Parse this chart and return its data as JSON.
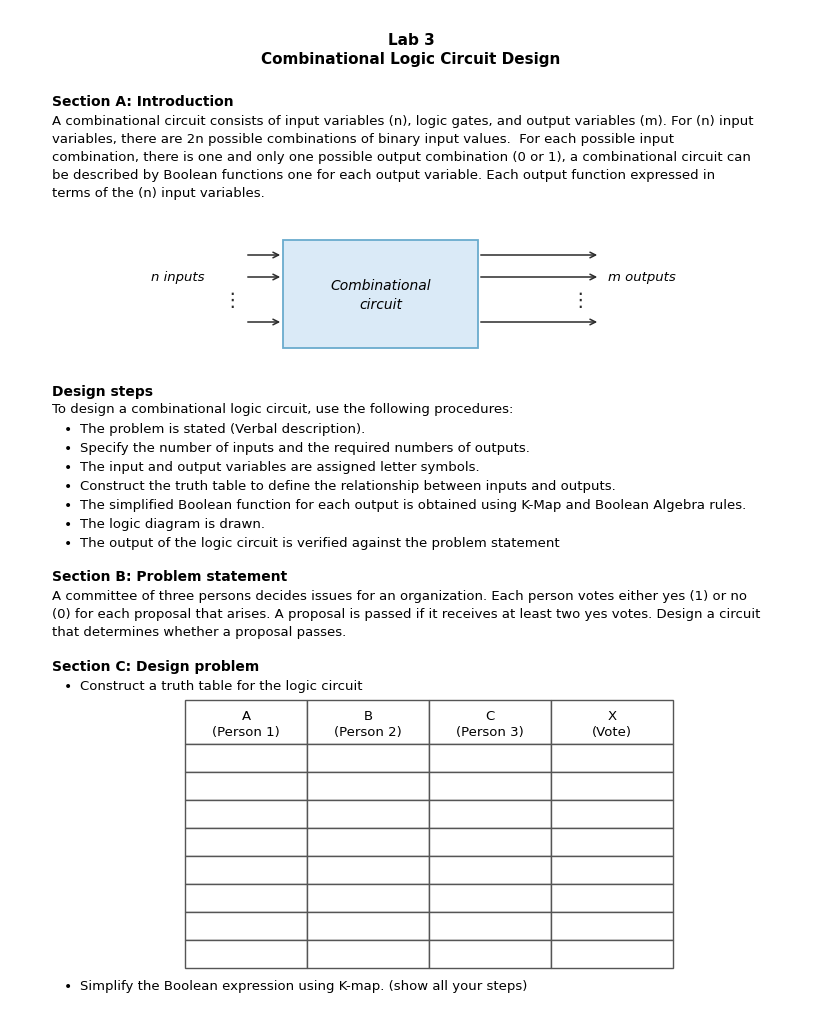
{
  "title_line1": "Lab 3",
  "title_line2": "Combinational Logic Circuit Design",
  "section_a_title": "Section A: Introduction",
  "section_a_body": "A combinational circuit consists of input variables (n), logic gates, and output variables (m). For (n) input\nvariables, there are 2n possible combinations of binary input values.  For each possible input\ncombination, there is one and only one possible output combination (0 or 1), a combinational circuit can\nbe described by Boolean functions one for each output variable. Each output function expressed in\nterms of the (n) input variables.",
  "circuit_box_label_line1": "Combinational",
  "circuit_box_label_line2": "circuit",
  "n_inputs_label": "n inputs",
  "m_outputs_label": "m outputs",
  "design_steps_title": "Design steps",
  "design_steps_intro": "To design a combinational logic circuit, use the following procedures:",
  "design_steps_bullets": [
    "The problem is stated (Verbal description).",
    "Specify the number of inputs and the required numbers of outputs.",
    "The input and output variables are assigned letter symbols.",
    "Construct the truth table to define the relationship between inputs and outputs.",
    "The simplified Boolean function for each output is obtained using K-Map and Boolean Algebra rules.",
    "The logic diagram is drawn.",
    "The output of the logic circuit is verified against the problem statement"
  ],
  "section_b_title": "Section B: Problem statement",
  "section_b_body": "A committee of three persons decides issues for an organization. Each person votes either yes (1) or no\n(0) for each proposal that arises. A proposal is passed if it receives at least two yes votes. Design a circuit\nthat determines whether a proposal passes.",
  "section_c_title": "Section C: Design problem",
  "section_c_bullet1": "Construct a truth table for the logic circuit",
  "table_headers_row1": [
    "A",
    "B",
    "C",
    "X"
  ],
  "table_headers_row2": [
    "(Person 1)",
    "(Person 2)",
    "(Person 3)",
    "(Vote)"
  ],
  "table_num_rows": 8,
  "section_c_bullet2": "Simplify the Boolean expression using K-map. (show all your steps)",
  "bg_color": "#ffffff",
  "text_color": "#000000",
  "box_fill_color": "#daeaf7",
  "box_edge_color": "#6aabce"
}
